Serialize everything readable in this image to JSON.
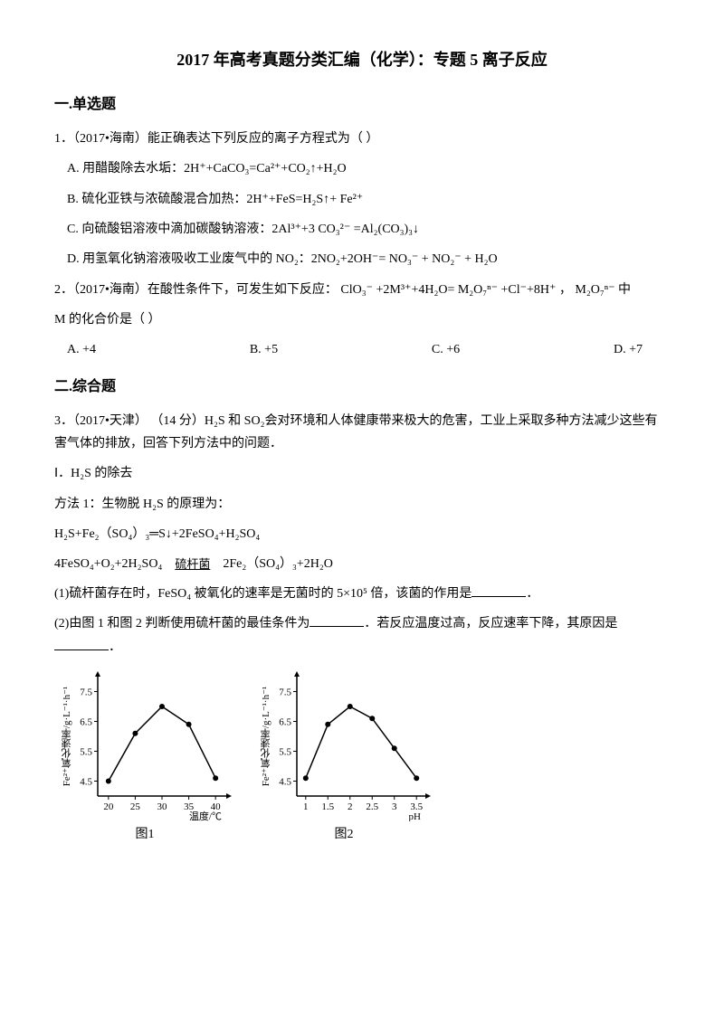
{
  "title": "2017 年高考真题分类汇编（化学）：专题 5  离子反应",
  "section1": {
    "header": "一.单选题"
  },
  "q1": {
    "stem": "1．（2017•海南）能正确表达下列反应的离子方程式为（   ）",
    "optA": "A. 用醋酸除去水垢：2H⁺+CaCO₃=Ca²⁺+CO₂↑+H₂O",
    "optB": "B. 硫化亚铁与浓硫酸混合加热：2H⁺+FeS=H₂S↑+ Fe²⁺",
    "optC_pre": "C. 向硫酸铝溶液中滴加碳酸钠溶液：2Al³⁺+3 ",
    "optC_frac": "CO₃²⁻",
    "optC_post": " =Al₂(CO₃)₃↓",
    "optD_pre": "D. 用氢氧化钠溶液吸收工业废气中的 NO₂：2NO₂+2OH⁻= ",
    "optD_f1": "NO₃⁻",
    "optD_mid": " + ",
    "optD_f2": "NO₂⁻",
    "optD_post": " + H₂O"
  },
  "q2": {
    "stem_pre": "2．（2017•海南）在酸性条件下，可发生如下反应：   ",
    "f1": "ClO₃⁻",
    "stem_mid1": " +2M³⁺+4H₂O= ",
    "f2": "M₂O₇ⁿ⁻",
    "stem_mid2": " +Cl⁻+8H⁺     ，    ",
    "f3": "M₂O₇ⁿ⁻",
    "stem_post": " 中",
    "stem_line2": "M 的化合价是（   ）",
    "optA": "A. +4",
    "optB": "B. +5",
    "optC": "C. +6",
    "optD": "D. +7"
  },
  "section2": {
    "header": "二.综合题"
  },
  "q3": {
    "stem": "3．（2017•天津） （14 分）H₂S 和 SO₂会对环境和人体健康带来极大的危害，工业上采取多种方法减少这些有害气体的排放，回答下列方法中的问题．",
    "p1": "Ⅰ．H₂S 的除去",
    "p2": "方法 1：生物脱 H₂S 的原理为：",
    "eq1": "H₂S+Fe₂（SO₄）₃═S↓+2FeSO₄+H₂SO₄",
    "eq2_pre": "4FeSO₄+O₂+2H₂SO₄ ",
    "eq2_over": "硫杆菌",
    "eq2_post": " 2Fe₂（SO₄）₃+2H₂O",
    "sub1_pre": "(1)硫杆菌存在时，FeSO₄ 被氧化的速率是无菌时的 5×10⁵ 倍，该菌的作用是",
    "sub1_post": "．",
    "sub2_pre": "(2)由图 1 和图 2 判断使用硫杆菌的最佳条件为",
    "sub2_mid": "．若反应温度过高，反应速率下降，其原因是",
    "sub2_post": "．"
  },
  "chart1": {
    "label": "图1",
    "xlabel": "温度/℃",
    "ylabel": "Fe²⁺氧化速率/g·L⁻¹·h⁻¹",
    "xticks": [
      20,
      25,
      30,
      35,
      40
    ],
    "yticks": [
      4.5,
      5.5,
      6.5,
      7.5
    ],
    "points": [
      {
        "x": 20,
        "y": 4.5
      },
      {
        "x": 25,
        "y": 6.1
      },
      {
        "x": 30,
        "y": 7.0
      },
      {
        "x": 35,
        "y": 6.4
      },
      {
        "x": 40,
        "y": 4.6
      }
    ],
    "xlim": [
      18,
      42
    ],
    "ylim": [
      4.0,
      8.0
    ],
    "line_color": "#000000",
    "marker": "circle",
    "marker_fill": "#000000",
    "background": "#ffffff"
  },
  "chart2": {
    "label": "图2",
    "xlabel": "pH",
    "ylabel": "Fe²⁺氧化速率/g·L⁻¹·h⁻¹",
    "xticks": [
      1.0,
      1.5,
      2.0,
      2.5,
      3.0,
      3.5
    ],
    "yticks": [
      4.5,
      5.5,
      6.5,
      7.5
    ],
    "points": [
      {
        "x": 1.0,
        "y": 4.6
      },
      {
        "x": 1.5,
        "y": 6.4
      },
      {
        "x": 2.0,
        "y": 7.0
      },
      {
        "x": 2.5,
        "y": 6.6
      },
      {
        "x": 3.0,
        "y": 5.6
      },
      {
        "x": 3.5,
        "y": 4.6
      }
    ],
    "xlim": [
      0.8,
      3.7
    ],
    "ylim": [
      4.0,
      8.0
    ],
    "line_color": "#000000",
    "marker": "circle",
    "marker_fill": "#000000",
    "background": "#ffffff"
  }
}
